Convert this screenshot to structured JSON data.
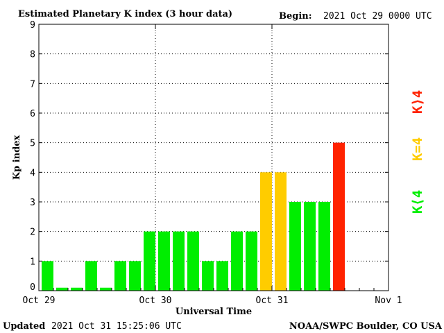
{
  "chart_data": {
    "type": "bar",
    "title": "Estimated Planetary K index (3 hour data)",
    "begin_label": "Begin:",
    "begin_value": "2021 Oct 29 0000 UTC",
    "xlabel": "Universal Time",
    "ylabel": "Kp index",
    "ylim": [
      0,
      9
    ],
    "yticks": [
      "0",
      "1",
      "2",
      "3",
      "4",
      "5",
      "6",
      "7",
      "8",
      "9"
    ],
    "xticks": [
      "Oct 29",
      "Oct 30",
      "Oct 31",
      "Nov 1"
    ],
    "x_unit": "3-hour intervals starting 2021 Oct 29 0000 UTC",
    "values": [
      1,
      0.1,
      0.1,
      1,
      0.1,
      1,
      1,
      2,
      2,
      2,
      2,
      1,
      1,
      2,
      2,
      4,
      4,
      3,
      3,
      3,
      5
    ],
    "grid": true,
    "colors": {
      "below4": "#00ee00",
      "equal4": "#ffcc00",
      "above4": "#ff2200"
    },
    "legend": {
      "below": "K⟨4",
      "equal": "K=4",
      "above": "K⟩4"
    },
    "legend_placement": "right"
  },
  "footer": {
    "updated_label": "Updated",
    "updated_value": "2021 Oct 31 15:25:06 UTC",
    "source": "NOAA/SWPC Boulder, CO USA"
  }
}
